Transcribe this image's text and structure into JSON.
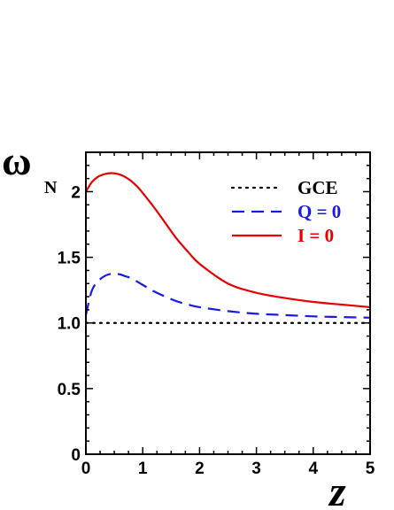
{
  "chart_data": {
    "type": "line",
    "xlabel": "z",
    "ylabel": "ω",
    "ylabel_sub": "N",
    "xlim": [
      0,
      5
    ],
    "ylim": [
      0,
      2.3
    ],
    "x_ticks": [
      0,
      1,
      2,
      3,
      4,
      5
    ],
    "x_tick_labels": [
      "0",
      "1",
      "2",
      "3",
      "4",
      "5"
    ],
    "y_ticks": [
      0,
      0.5,
      1.0,
      1.5,
      2.0
    ],
    "y_tick_labels": [
      "0",
      "0.5",
      "1.0",
      "1.5",
      "2"
    ],
    "grid": false,
    "legend_position": "top-right",
    "series": [
      {
        "name": "GCE",
        "color": "#000000",
        "style": "dotted",
        "x": [
          0,
          1,
          2,
          3,
          4,
          5
        ],
        "y": [
          1.0,
          1.0,
          1.0,
          1.0,
          1.0,
          1.0
        ]
      },
      {
        "name": "Q = 0",
        "color": "#1a1ae6",
        "style": "dashed",
        "x": [
          0,
          0.1,
          0.2,
          0.3,
          0.4,
          0.5,
          0.6,
          0.7,
          0.8,
          1.0,
          1.2,
          1.4,
          1.6,
          1.8,
          2.0,
          2.5,
          3.0,
          3.5,
          4.0,
          4.5,
          5.0
        ],
        "y": [
          1.06,
          1.24,
          1.31,
          1.35,
          1.37,
          1.375,
          1.37,
          1.355,
          1.34,
          1.29,
          1.24,
          1.2,
          1.165,
          1.14,
          1.12,
          1.09,
          1.07,
          1.06,
          1.05,
          1.045,
          1.04
        ]
      },
      {
        "name": "I = 0",
        "color": "#e60000",
        "style": "solid",
        "x": [
          0,
          0.1,
          0.2,
          0.3,
          0.4,
          0.5,
          0.6,
          0.7,
          0.8,
          0.9,
          1.0,
          1.2,
          1.4,
          1.6,
          1.8,
          2.0,
          2.5,
          3.0,
          3.5,
          4.0,
          4.5,
          5.0
        ],
        "y": [
          2.0,
          2.07,
          2.11,
          2.13,
          2.14,
          2.14,
          2.13,
          2.11,
          2.08,
          2.04,
          1.99,
          1.88,
          1.76,
          1.64,
          1.54,
          1.45,
          1.3,
          1.23,
          1.19,
          1.16,
          1.14,
          1.12
        ]
      }
    ]
  }
}
